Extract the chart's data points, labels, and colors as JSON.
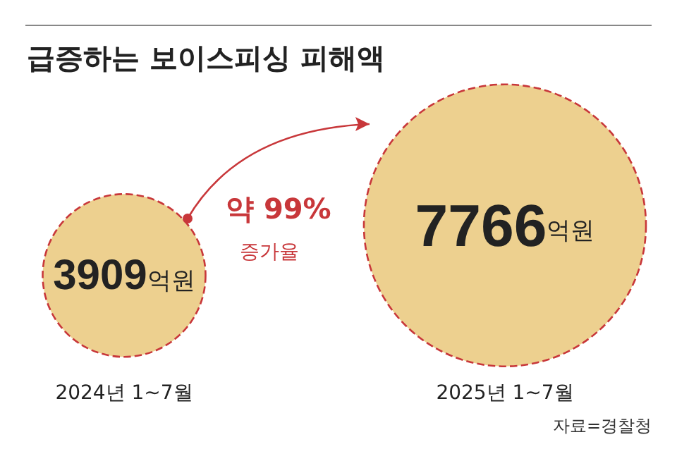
{
  "chart_data": {
    "type": "other",
    "title": "급증하는 보이스피싱 피해액",
    "categories": [
      "2024년 1~7월",
      "2025년 1~7월"
    ],
    "values": [
      3909,
      7766
    ],
    "value_labels": [
      "3909억원",
      "7766억원"
    ],
    "color": "#edd08f",
    "annotations": [
      "약 99%",
      "증가율",
      "자료=경찰청"
    ]
  }
}
